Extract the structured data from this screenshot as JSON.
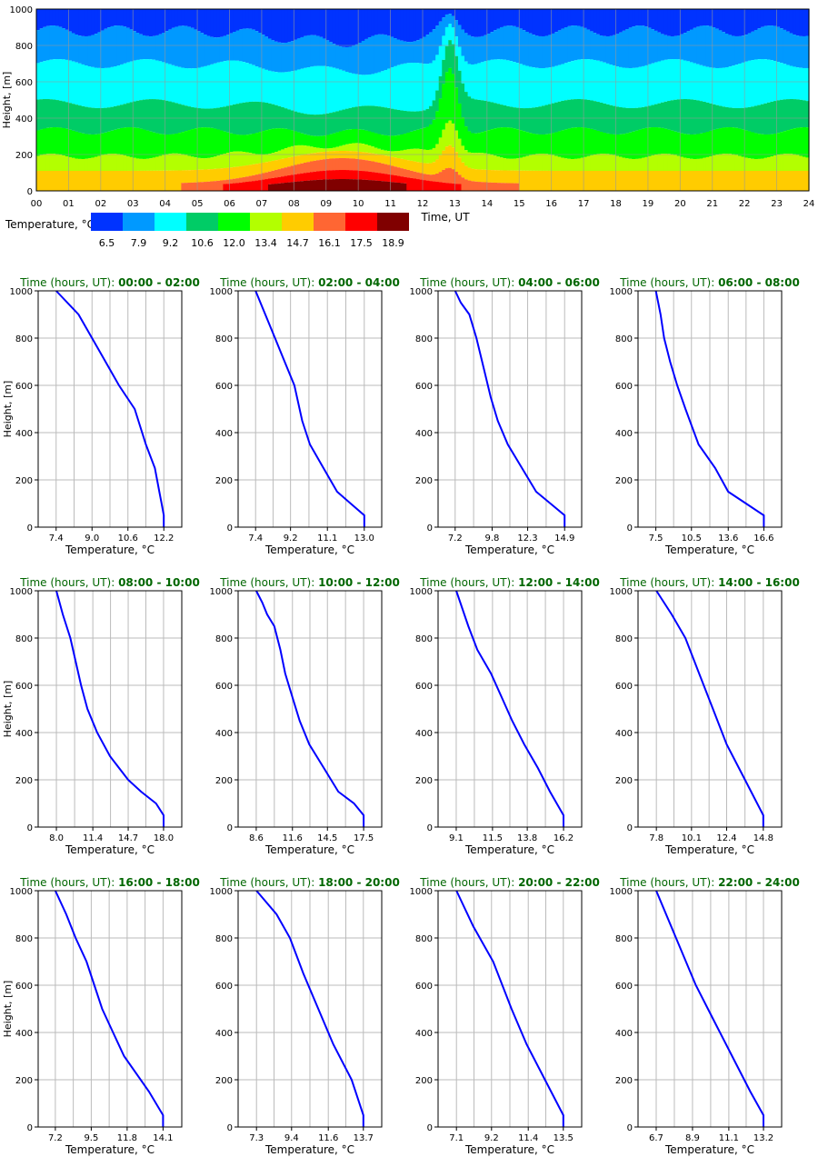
{
  "heatmap": {
    "ylabel": "Height, [m]",
    "xlabel": "Time, UT",
    "xticks": [
      "00",
      "01",
      "02",
      "03",
      "04",
      "05",
      "06",
      "07",
      "08",
      "09",
      "10",
      "11",
      "12",
      "13",
      "14",
      "15",
      "16",
      "17",
      "18",
      "19",
      "20",
      "21",
      "22",
      "23",
      "24"
    ],
    "yticks": [
      0,
      200,
      400,
      600,
      800,
      1000
    ],
    "colorbar_label": "Temperature, °C",
    "colorbar_values": [
      "6.5",
      "7.9",
      "9.2",
      "10.6",
      "12.0",
      "13.4",
      "14.7",
      "16.1",
      "17.5",
      "18.9"
    ],
    "colors": [
      "#0033ff",
      "#0099ff",
      "#00ffff",
      "#00cc66",
      "#00ff00",
      "#b3ff00",
      "#ffcc00",
      "#ff6633",
      "#ff0000",
      "#800000"
    ]
  },
  "profile_common": {
    "ylabel": "Height, [m]",
    "xlabel": "Temperature, °C",
    "title_prefix": "Time (hours, UT): ",
    "yticks": [
      0,
      200,
      400,
      600,
      800,
      1000
    ],
    "line_color": "#0000ff",
    "title_color": "#006600"
  },
  "chart_data": [
    {
      "type": "heatmap",
      "x_range": [
        0,
        24
      ],
      "y_range": [
        0,
        1000
      ],
      "description_levels": "Temperature classes by height/time"
    },
    {
      "type": "line",
      "range": "00:00 - 02:00",
      "xticks": [
        "7.4",
        "9.0",
        "10.6",
        "12.2"
      ],
      "xlim": [
        6.6,
        13.0
      ],
      "temps": [
        12.2,
        12.2,
        12.1,
        12.0,
        11.8,
        11.4,
        10.9,
        10.2,
        9.3,
        8.4,
        7.4
      ],
      "heights": [
        0,
        50,
        100,
        150,
        250,
        350,
        500,
        600,
        750,
        900,
        1000
      ]
    },
    {
      "type": "line",
      "range": "02:00 - 04:00",
      "xticks": [
        "7.4",
        "9.2",
        "11.1",
        "13.0"
      ],
      "xlim": [
        6.5,
        13.9
      ],
      "temps": [
        13.0,
        13.0,
        12.3,
        11.6,
        10.9,
        10.2,
        9.8,
        9.4,
        8.9,
        8.4,
        7.9,
        7.4
      ],
      "heights": [
        0,
        50,
        100,
        150,
        250,
        350,
        450,
        600,
        700,
        800,
        900,
        1000
      ]
    },
    {
      "type": "line",
      "range": "04:00 - 06:00",
      "xticks": [
        "7.2",
        "9.8",
        "12.3",
        "14.9"
      ],
      "xlim": [
        6.0,
        16.1
      ],
      "temps": [
        14.9,
        14.9,
        13.9,
        12.9,
        11.9,
        10.9,
        10.2,
        9.7,
        9.1,
        8.7,
        8.2,
        7.6,
        7.2
      ],
      "heights": [
        0,
        50,
        100,
        150,
        250,
        350,
        450,
        550,
        700,
        800,
        900,
        950,
        1000
      ]
    },
    {
      "type": "line",
      "range": "06:00 - 08:00",
      "xticks": [
        "7.5",
        "10.5",
        "13.6",
        "16.6"
      ],
      "xlim": [
        6.0,
        18.1
      ],
      "temps": [
        16.6,
        16.6,
        15.1,
        13.6,
        12.5,
        11.1,
        10.0,
        9.3,
        8.7,
        8.2,
        7.9,
        7.5
      ],
      "heights": [
        0,
        50,
        100,
        150,
        250,
        350,
        500,
        600,
        700,
        800,
        900,
        1000
      ]
    },
    {
      "type": "line",
      "range": "08:00 - 10:00",
      "xticks": [
        "8.0",
        "11.4",
        "14.7",
        "18.0"
      ],
      "xlim": [
        6.3,
        19.7
      ],
      "temps": [
        18.0,
        18.0,
        17.3,
        15.9,
        14.7,
        13.0,
        11.8,
        10.9,
        10.3,
        9.8,
        9.3,
        8.6,
        8.0
      ],
      "heights": [
        0,
        50,
        100,
        150,
        200,
        300,
        400,
        500,
        600,
        700,
        800,
        900,
        1000
      ]
    },
    {
      "type": "line",
      "range": "10:00 - 12:00",
      "xticks": [
        "8.6",
        "11.6",
        "14.5",
        "17.5"
      ],
      "xlim": [
        7.1,
        19.0
      ],
      "temps": [
        17.5,
        17.5,
        16.7,
        15.4,
        14.2,
        13.0,
        12.2,
        11.6,
        11.0,
        10.6,
        10.1,
        9.5,
        9.1,
        8.6
      ],
      "heights": [
        0,
        50,
        100,
        150,
        250,
        350,
        450,
        550,
        650,
        750,
        850,
        900,
        950,
        1000
      ]
    },
    {
      "type": "line",
      "range": "12:00 - 14:00",
      "xticks": [
        "9.1",
        "11.5",
        "13.8",
        "16.2"
      ],
      "xlim": [
        7.9,
        17.4
      ],
      "temps": [
        16.2,
        16.2,
        15.3,
        14.5,
        13.6,
        12.8,
        12.1,
        11.4,
        10.5,
        9.9,
        9.1
      ],
      "heights": [
        0,
        50,
        150,
        250,
        350,
        450,
        550,
        650,
        750,
        850,
        1000
      ]
    },
    {
      "type": "line",
      "range": "14:00 - 16:00",
      "xticks": [
        "7.8",
        "10.1",
        "12.4",
        "14.8"
      ],
      "xlim": [
        6.6,
        16.0
      ],
      "temps": [
        14.8,
        14.8,
        13.6,
        12.4,
        11.5,
        10.6,
        9.7,
        8.8,
        7.8
      ],
      "heights": [
        0,
        50,
        200,
        350,
        500,
        650,
        800,
        900,
        1000
      ]
    },
    {
      "type": "line",
      "range": "16:00 - 18:00",
      "xticks": [
        "7.2",
        "9.5",
        "11.8",
        "14.1"
      ],
      "xlim": [
        6.1,
        15.3
      ],
      "temps": [
        14.1,
        14.1,
        13.2,
        11.6,
        10.9,
        10.2,
        9.7,
        9.2,
        8.5,
        7.9,
        7.2
      ],
      "heights": [
        0,
        50,
        150,
        300,
        400,
        500,
        600,
        700,
        800,
        900,
        1000
      ]
    },
    {
      "type": "line",
      "range": "18:00 - 20:00",
      "xticks": [
        "7.3",
        "9.4",
        "11.6",
        "13.7"
      ],
      "xlim": [
        6.2,
        14.8
      ],
      "temps": [
        13.7,
        13.7,
        13.0,
        11.9,
        11.0,
        10.1,
        9.3,
        8.5,
        7.3
      ],
      "heights": [
        0,
        50,
        200,
        350,
        500,
        650,
        800,
        900,
        1000
      ]
    },
    {
      "type": "line",
      "range": "20:00 - 22:00",
      "xticks": [
        "7.1",
        "9.2",
        "11.4",
        "13.5"
      ],
      "xlim": [
        6.0,
        14.6
      ],
      "temps": [
        13.5,
        13.5,
        12.4,
        11.3,
        10.4,
        9.3,
        8.1,
        7.1
      ],
      "heights": [
        0,
        50,
        200,
        350,
        500,
        700,
        850,
        1000
      ]
    },
    {
      "type": "line",
      "range": "22:00 - 24:00",
      "xticks": [
        "6.7",
        "8.9",
        "11.1",
        "13.2"
      ],
      "xlim": [
        5.6,
        14.3
      ],
      "temps": [
        13.2,
        13.2,
        12.4,
        11.3,
        10.2,
        9.1,
        7.9,
        6.7
      ],
      "heights": [
        0,
        50,
        150,
        300,
        450,
        600,
        800,
        1000
      ]
    }
  ]
}
